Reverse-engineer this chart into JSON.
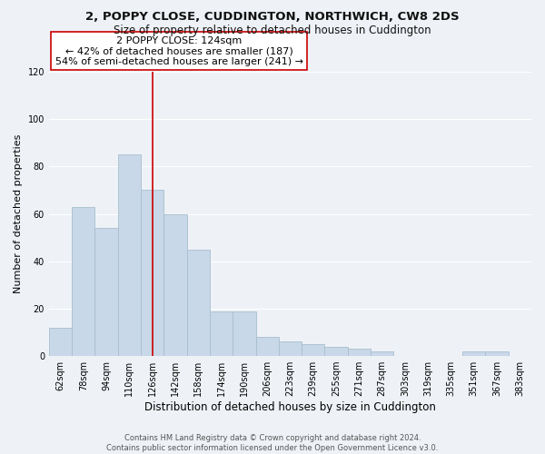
{
  "title1": "2, POPPY CLOSE, CUDDINGTON, NORTHWICH, CW8 2DS",
  "title2": "Size of property relative to detached houses in Cuddington",
  "xlabel": "Distribution of detached houses by size in Cuddington",
  "ylabel": "Number of detached properties",
  "footer1": "Contains HM Land Registry data © Crown copyright and database right 2024.",
  "footer2": "Contains public sector information licensed under the Open Government Licence v3.0.",
  "bar_labels": [
    "62sqm",
    "78sqm",
    "94sqm",
    "110sqm",
    "126sqm",
    "142sqm",
    "158sqm",
    "174sqm",
    "190sqm",
    "206sqm",
    "223sqm",
    "239sqm",
    "255sqm",
    "271sqm",
    "287sqm",
    "303sqm",
    "319sqm",
    "335sqm",
    "351sqm",
    "367sqm",
    "383sqm"
  ],
  "bar_values": [
    12,
    63,
    54,
    85,
    70,
    60,
    45,
    19,
    19,
    8,
    6,
    5,
    4,
    3,
    2,
    0,
    0,
    0,
    2,
    2,
    0
  ],
  "bar_color": "#c8d8e8",
  "bar_edge_color": "#a8bece",
  "highlight_x_label": "126sqm",
  "highlight_line_color": "#cc0000",
  "annotation_text": "2 POPPY CLOSE: 124sqm\n← 42% of detached houses are smaller (187)\n54% of semi-detached houses are larger (241) →",
  "annotation_box_color": "#ffffff",
  "annotation_box_edge": "#cc0000",
  "ylim": [
    0,
    120
  ],
  "yticks": [
    0,
    20,
    40,
    60,
    80,
    100,
    120
  ],
  "background_color": "#eef2f7",
  "plot_bg_color": "#eef2f7",
  "grid_color": "#ffffff",
  "title1_fontsize": 9.5,
  "title2_fontsize": 8.5,
  "xlabel_fontsize": 8.5,
  "ylabel_fontsize": 8,
  "tick_fontsize": 7,
  "annotation_fontsize": 8,
  "footer_fontsize": 6
}
